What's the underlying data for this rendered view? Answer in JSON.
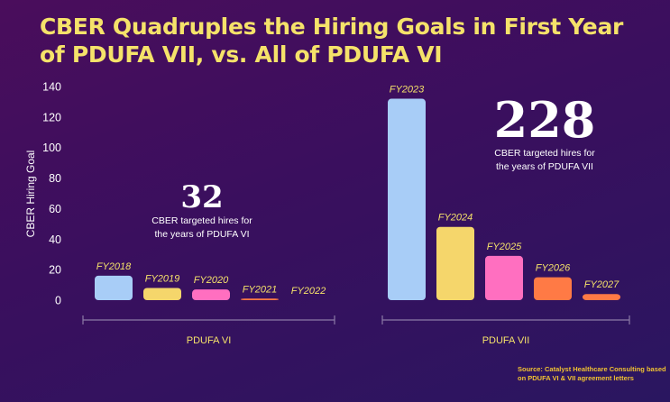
{
  "title": "CBER Quadruples the Hiring Goals in First Year of PDUFA VII, vs. All of PDUFA VI",
  "source": "Source: Catalyst Healthcare Consulting based on PDUFA VI & VII agreement letters",
  "chart_data": {
    "type": "bar",
    "title": "CBER Quadruples the Hiring Goals in First Year of PDUFA VII, vs. All of PDUFA VI",
    "ylabel": "CBER Hiring Goal",
    "xlabel": "",
    "ylim": [
      0,
      140
    ],
    "yticks": [
      0,
      20,
      40,
      60,
      80,
      100,
      120,
      140
    ],
    "grid": false,
    "categories": [
      "FY2018",
      "FY2019",
      "FY2020",
      "FY2021",
      "FY2022",
      "FY2023",
      "FY2024",
      "FY2025",
      "FY2026",
      "FY2027"
    ],
    "values": [
      16,
      8,
      7,
      1,
      0,
      132,
      48,
      29,
      15,
      4
    ],
    "bar_colors": [
      "#a8cdf7",
      "#f5d66b",
      "#ff6fc0",
      "#ff7a45",
      "#ff7a45",
      "#a8cdf7",
      "#f5d66b",
      "#ff6fc0",
      "#ff7a45",
      "#ff7a45"
    ],
    "groups": [
      {
        "label": "PDUFA VI",
        "categories": [
          "FY2018",
          "FY2019",
          "FY2020",
          "FY2021",
          "FY2022"
        ],
        "total": "32",
        "caption": [
          "CBER targeted hires for",
          "the years of PDUFA VI"
        ]
      },
      {
        "label": "PDUFA VII",
        "categories": [
          "FY2023",
          "FY2024",
          "FY2025",
          "FY2026",
          "FY2027"
        ],
        "total": "228",
        "caption": [
          "CBER targeted hires for",
          "the years of PDUFA VII"
        ]
      }
    ]
  }
}
